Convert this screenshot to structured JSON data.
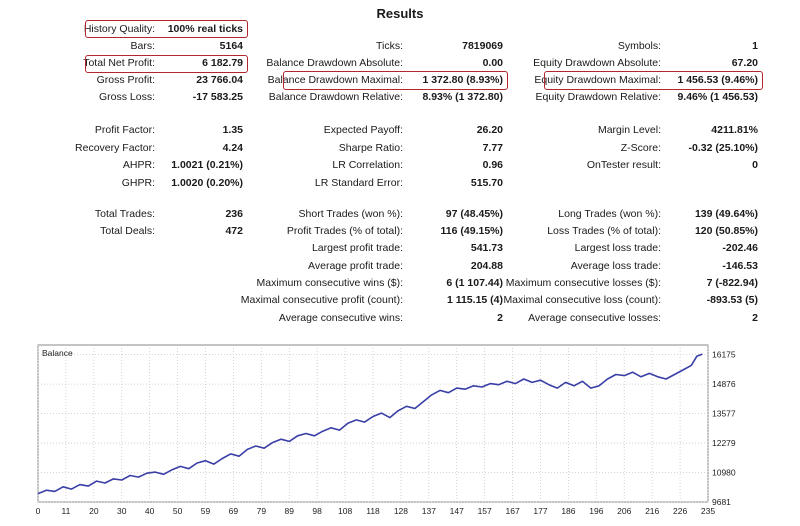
{
  "title": "Results",
  "history_quality": {
    "label": "History Quality:",
    "value": "100% real ticks"
  },
  "col1": [
    {
      "label": "Bars:",
      "value": "5164"
    },
    {
      "label": "Total Net Profit:",
      "value": "6 182.79"
    },
    {
      "label": "Gross Profit:",
      "value": "23 766.04"
    },
    {
      "label": "Gross Loss:",
      "value": "-17 583.25"
    },
    {
      "label": "Profit Factor:",
      "value": "1.35"
    },
    {
      "label": "Recovery Factor:",
      "value": "4.24"
    },
    {
      "label": "AHPR:",
      "value": "1.0021 (0.21%)"
    },
    {
      "label": "GHPR:",
      "value": "1.0020 (0.20%)"
    },
    {
      "label": "Total Trades:",
      "value": "236"
    },
    {
      "label": "Total Deals:",
      "value": "472"
    }
  ],
  "col2": [
    {
      "label": "Ticks:",
      "value": "7819069"
    },
    {
      "label": "Balance Drawdown Absolute:",
      "value": "0.00"
    },
    {
      "label": "Balance Drawdown Maximal:",
      "value": "1 372.80 (8.93%)"
    },
    {
      "label": "Balance Drawdown Relative:",
      "value": "8.93% (1 372.80)"
    },
    {
      "label": "Expected Payoff:",
      "value": "26.20"
    },
    {
      "label": "Sharpe Ratio:",
      "value": "7.77"
    },
    {
      "label": "LR Correlation:",
      "value": "0.96"
    },
    {
      "label": "LR Standard Error:",
      "value": "515.70"
    },
    {
      "label": "Short Trades (won %):",
      "value": "97 (48.45%)"
    },
    {
      "label": "Profit Trades (% of total):",
      "value": "116 (49.15%)"
    },
    {
      "label": "Largest profit trade:",
      "value": "541.73"
    },
    {
      "label": "Average profit trade:",
      "value": "204.88"
    },
    {
      "label": "Maximum consecutive wins ($):",
      "value": "6 (1 107.44)"
    },
    {
      "label": "Maximal consecutive profit (count):",
      "value": "1 115.15 (4)"
    },
    {
      "label": "Average consecutive wins:",
      "value": "2"
    }
  ],
  "col3": [
    {
      "label": "Symbols:",
      "value": "1"
    },
    {
      "label": "Equity Drawdown Absolute:",
      "value": "67.20"
    },
    {
      "label": "Equity Drawdown Maximal:",
      "value": "1 456.53 (9.46%)"
    },
    {
      "label": "Equity Drawdown Relative:",
      "value": "9.46% (1 456.53)"
    },
    {
      "label": "Margin Level:",
      "value": "4211.81%"
    },
    {
      "label": "Z-Score:",
      "value": "-0.32 (25.10%)"
    },
    {
      "label": "OnTester result:",
      "value": "0"
    },
    {
      "label": "Long Trades (won %):",
      "value": "139 (49.64%)"
    },
    {
      "label": "Loss Trades (% of total):",
      "value": "120 (50.85%)"
    },
    {
      "label": "Largest loss trade:",
      "value": "-202.46"
    },
    {
      "label": "Average loss trade:",
      "value": "-146.53"
    },
    {
      "label": "Maximum consecutive losses ($):",
      "value": "7 (-822.94)"
    },
    {
      "label": "Maximal consecutive loss (count):",
      "value": "-893.53 (5)"
    },
    {
      "label": "Average consecutive losses:",
      "value": "2"
    }
  ],
  "chart_data": {
    "type": "line",
    "title": "Balance",
    "xlabel": "",
    "ylabel": "",
    "x_ticks": [
      "0",
      "11",
      "20",
      "30",
      "40",
      "50",
      "59",
      "69",
      "79",
      "89",
      "98",
      "108",
      "118",
      "128",
      "137",
      "147",
      "157",
      "167",
      "177",
      "186",
      "196",
      "206",
      "216",
      "226",
      "235"
    ],
    "y_ticks": [
      "9681",
      "10980",
      "12279",
      "13577",
      "14876",
      "16175"
    ],
    "xlim": [
      0,
      240
    ],
    "ylim": [
      9681,
      16600
    ],
    "colors": {
      "line": "#3a3fa6",
      "grid": "#c8c8c8"
    },
    "series": [
      {
        "name": "Balance",
        "x": [
          0,
          3,
          6,
          9,
          12,
          15,
          18,
          21,
          24,
          27,
          30,
          33,
          36,
          39,
          42,
          45,
          48,
          51,
          54,
          57,
          60,
          63,
          66,
          69,
          72,
          75,
          78,
          81,
          84,
          87,
          90,
          93,
          96,
          99,
          102,
          105,
          108,
          111,
          114,
          117,
          120,
          123,
          126,
          129,
          132,
          135,
          138,
          141,
          144,
          147,
          150,
          153,
          156,
          159,
          162,
          165,
          168,
          171,
          174,
          177,
          180,
          183,
          186,
          189,
          192,
          195,
          198,
          201,
          204,
          207,
          210,
          213,
          216,
          219,
          222,
          225,
          228,
          231,
          234,
          236,
          238
        ],
        "values": [
          10050,
          10200,
          10150,
          10350,
          10250,
          10450,
          10380,
          10600,
          10520,
          10700,
          10650,
          10850,
          10780,
          10950,
          11000,
          10900,
          11100,
          11250,
          11150,
          11400,
          11500,
          11350,
          11600,
          11800,
          11700,
          12000,
          12150,
          12050,
          12300,
          12450,
          12350,
          12600,
          12700,
          12600,
          12800,
          12950,
          12850,
          13150,
          13300,
          13200,
          13450,
          13600,
          13400,
          13700,
          13900,
          13800,
          14100,
          14400,
          14600,
          14500,
          14700,
          14650,
          14800,
          14750,
          14900,
          14850,
          15000,
          14900,
          15100,
          14950,
          15050,
          14850,
          14700,
          14950,
          14800,
          15000,
          14700,
          14800,
          15100,
          15300,
          15250,
          15400,
          15200,
          15350,
          15200,
          15100,
          15300,
          15500,
          15700,
          16100,
          16200
        ]
      }
    ]
  }
}
